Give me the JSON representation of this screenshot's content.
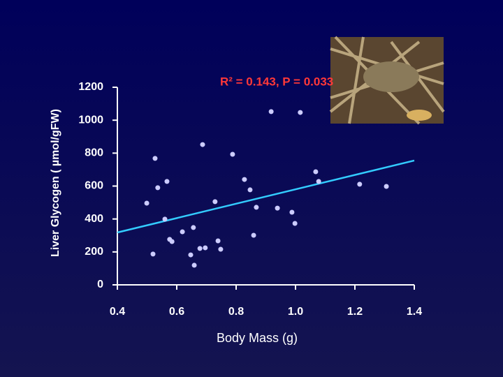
{
  "chart_data": {
    "type": "scatter",
    "title": "R² = 0.143, P = 0.033",
    "xlabel": "Body Mass (g)",
    "ylabel": "Liver Glycogen ( µmol/gFW)",
    "x": [
      0.918,
      1.016,
      0.687,
      0.788,
      0.527,
      1.068,
      0.828,
      1.078,
      0.567,
      1.216,
      1.306,
      0.847,
      0.536,
      0.729,
      0.499,
      0.868,
      0.939,
      0.988,
      0.56,
      0.998,
      0.656,
      0.619,
      0.859,
      0.739,
      0.576,
      0.584,
      0.696,
      0.678,
      0.748,
      0.52,
      0.647,
      0.659
    ],
    "values": [
      1052,
      1047,
      852,
      793,
      768,
      687,
      640,
      628,
      628,
      611,
      598,
      577,
      590,
      505,
      496,
      471,
      466,
      441,
      399,
      373,
      348,
      322,
      301,
      267,
      276,
      263,
      225,
      221,
      216,
      187,
      182,
      119
    ],
    "color": "#ccccff",
    "fit": {
      "x": [
        0.4,
        1.4
      ],
      "values": [
        318,
        755
      ],
      "color": "#33ccff"
    },
    "xlim": [
      0.4,
      1.4
    ],
    "xticks": [
      0.4,
      0.6,
      0.8,
      {
        "value": 1,
        "label": "1.0"
      },
      1.2,
      1.4
    ],
    "ylim": [
      0,
      1200
    ],
    "yticks": [
      0,
      200,
      400,
      600,
      800,
      1000,
      1200
    ]
  }
}
